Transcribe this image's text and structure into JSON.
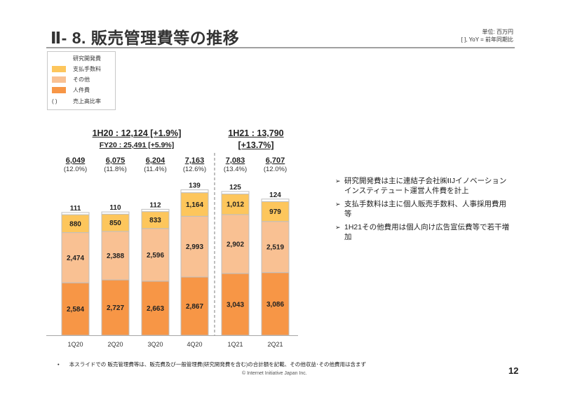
{
  "page": {
    "title": "Ⅱ- 8.  販売管理費等の推移",
    "unit_line1": "単位: 百万円",
    "unit_line2": "[  ], YoY = 前年同期比",
    "page_number": "12",
    "copyright": "© Internet Initiative Japan Inc.",
    "footnote_bullet": "•",
    "footnote": "本スライドでの 販売管理費等は、販売費及び一般管理費(研究開発費を含む)の合計額を記載、その他収益･その他費用は含まず"
  },
  "legend": {
    "items": [
      {
        "label": "研究開発費",
        "color": "#ffffff"
      },
      {
        "label": "支払手数料",
        "color": "#fdc65c"
      },
      {
        "label": "その他",
        "color": "#f9c193"
      },
      {
        "label": "人件費",
        "color": "#f79646"
      }
    ],
    "ratio_marker": "(   )",
    "ratio_label": "売上高比率"
  },
  "summaries": {
    "h1_20": "1H20 : 12,124 [+1.9%]",
    "fy20": "FY20 : 25,491 [+5.9%]",
    "h1_21_line1": "1H21 : 13,790",
    "h1_21_line2": "[+13.7%]"
  },
  "notes": [
    {
      "bullet": "➢",
      "text": "研究開発費は主に連結子会社㈱IIJイノベーションインスティテュート運営人件費を計上"
    },
    {
      "bullet": "➢",
      "text": "支払手数料は主に個人販売手数料、人事採用費用等"
    },
    {
      "bullet": "➢",
      "text": "1H21その他費用は個人向け広告宣伝費等で若干増加"
    }
  ],
  "chart_data": {
    "type": "bar",
    "stacked": true,
    "title": "販売管理費等の推移",
    "xlabel": "",
    "ylabel": "",
    "unit": "百万円",
    "categories": [
      "1Q20",
      "2Q20",
      "3Q20",
      "4Q20",
      "1Q21",
      "2Q21"
    ],
    "series": [
      {
        "name": "人件費",
        "color": "#f79646",
        "values": [
          2584,
          2727,
          2663,
          2867,
          3043,
          3086
        ]
      },
      {
        "name": "その他",
        "color": "#f9c193",
        "values": [
          2474,
          2388,
          2596,
          2993,
          2902,
          2519
        ]
      },
      {
        "name": "支払手数料",
        "color": "#fdc65c",
        "values": [
          880,
          850,
          833,
          1164,
          1012,
          979
        ]
      },
      {
        "name": "研究開発費",
        "color": "#ffffff",
        "values": [
          111,
          110,
          112,
          139,
          125,
          124
        ]
      }
    ],
    "totals": [
      6049,
      6075,
      6204,
      7163,
      7083,
      6707
    ],
    "totals_labels": [
      "6,049",
      "6,075",
      "6,204",
      "7,163",
      "7,083",
      "6,707"
    ],
    "ratio_labels": [
      "(12.0%)",
      "(11.8%)",
      "(11.4%)",
      "(12.6%)",
      "(13.4%)",
      "(12.0%)"
    ],
    "segment_labels": [
      [
        "2,584",
        "2,474",
        "880",
        "111"
      ],
      [
        "2,727",
        "2,388",
        "850",
        "110"
      ],
      [
        "2,663",
        "2,596",
        "833",
        "112"
      ],
      [
        "2,867",
        "2,993",
        "1,164",
        "139"
      ],
      [
        "3,043",
        "2,902",
        "1,012",
        "125"
      ],
      [
        "3,086",
        "2,519",
        "979",
        "124"
      ]
    ],
    "ylim": [
      0,
      7500
    ],
    "grid": false,
    "legend_position": "top-left",
    "divider_between": [
      "4Q20",
      "1Q21"
    ]
  }
}
